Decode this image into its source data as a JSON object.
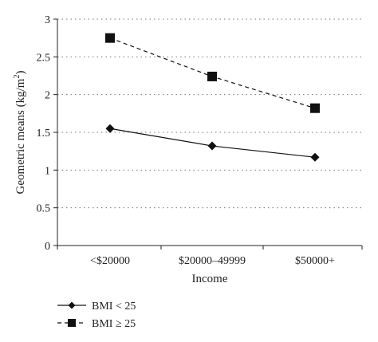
{
  "chart_data": {
    "type": "line",
    "title": "",
    "xlabel": "Income",
    "ylabel": "Geometric means (kg/m",
    "ylabel_sup": "2",
    "ylabel_close": ")",
    "categories": [
      "<$20000",
      "$20000–49999",
      "$50000+"
    ],
    "ylim": [
      0,
      3
    ],
    "yticks": [
      "0",
      "0.5",
      "1",
      "1.5",
      "2",
      "2.5",
      "3"
    ],
    "ytick_values": [
      0,
      0.5,
      1,
      1.5,
      2,
      2.5,
      3
    ],
    "grid": "horizontal dotted",
    "legend_position": "bottom-left",
    "series": [
      {
        "name": "BMI < 25",
        "values": [
          1.55,
          1.32,
          1.17
        ],
        "marker": "diamond",
        "line": "solid",
        "color": "#111111"
      },
      {
        "name": "BMI ≥ 25",
        "values": [
          2.75,
          2.24,
          1.82
        ],
        "marker": "square",
        "line": "dashed",
        "color": "#111111"
      }
    ]
  }
}
